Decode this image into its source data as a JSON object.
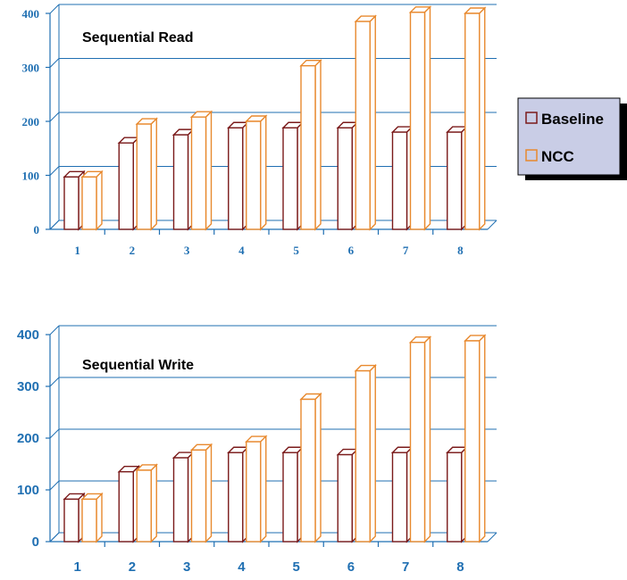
{
  "chart_data": [
    {
      "type": "bar",
      "title": "Sequential Read",
      "categories": [
        "1",
        "2",
        "3",
        "4",
        "5",
        "6",
        "7",
        "8"
      ],
      "y_ticks": [
        "0",
        "100",
        "200",
        "300",
        "400"
      ],
      "ylim": [
        0,
        400
      ],
      "grid": true,
      "legend_position": "right",
      "series": [
        {
          "name": "Baseline",
          "color": "#7a1a1a",
          "values": [
            97,
            160,
            175,
            188,
            188,
            188,
            180,
            180
          ]
        },
        {
          "name": "NCC",
          "color": "#e8892e",
          "values": [
            97,
            195,
            208,
            200,
            303,
            385,
            402,
            400
          ]
        }
      ]
    },
    {
      "type": "bar",
      "title": "Sequential Write",
      "categories": [
        "1",
        "2",
        "3",
        "4",
        "5",
        "6",
        "7",
        "8"
      ],
      "y_ticks": [
        "0",
        "100",
        "200",
        "300",
        "400"
      ],
      "ylim": [
        0,
        400
      ],
      "grid": true,
      "series": [
        {
          "name": "Baseline",
          "color": "#7a1a1a",
          "values": [
            82,
            135,
            162,
            172,
            172,
            168,
            172,
            172
          ]
        },
        {
          "name": "NCC",
          "color": "#e8892e",
          "values": [
            82,
            138,
            177,
            193,
            275,
            330,
            385,
            388
          ]
        }
      ]
    }
  ],
  "colors": {
    "axis": "#1f6fb2",
    "baseline": "#7a1a1a",
    "ncc": "#e8892e",
    "legend_bg": "#c9cde6"
  }
}
